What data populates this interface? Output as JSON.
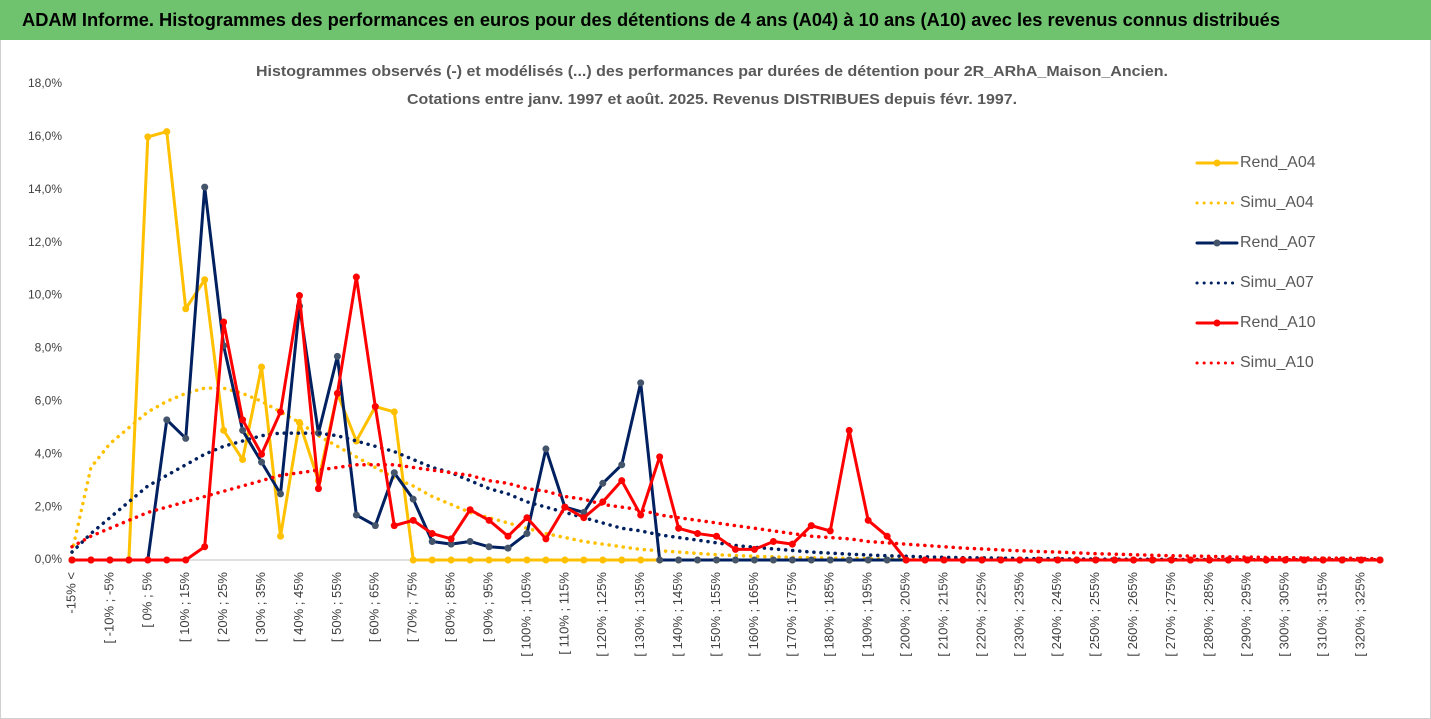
{
  "header": {
    "title": "ADAM Informe. Histogrammes des performances en euros pour des détentions de 4 ans (A04) à 10 ans (A10) avec les revenus connus distribués"
  },
  "chart_data": {
    "type": "line",
    "title": "Histogrammes observés (-) et modélisés (...) des performances par durées de détention pour 2R_ARhA_Maison_Ancien.",
    "subtitle": "Cotations entre janv. 1997 et août. 2025. Revenus DISTRIBUES depuis févr. 1997.",
    "categories": [
      "-15% <",
      null,
      "[ -10% ; -5%",
      null,
      "[ 0% ; 5%",
      null,
      "[ 10% ; 15%",
      null,
      "[ 20% ; 25%",
      null,
      "[ 30% ; 35%",
      null,
      "[ 40% ; 45%",
      null,
      "[ 50% ; 55%",
      null,
      "[ 60% ; 65%",
      null,
      "[ 70% ; 75%",
      null,
      "[ 80% ; 85%",
      null,
      "[ 90% ; 95%",
      null,
      "[ 100% ; 105%",
      null,
      "[ 110% ; 115%",
      null,
      "[ 120% ; 125%",
      null,
      "[ 130% ; 135%",
      null,
      "[ 140% ; 145%",
      null,
      "[ 150% ; 155%",
      null,
      "[ 160% ; 165%",
      null,
      "[ 170% ; 175%",
      null,
      "[ 180% ; 185%",
      null,
      "[ 190% ; 195%",
      null,
      "[ 200% ; 205%",
      null,
      "[ 210% ; 215%",
      null,
      "[ 220% ; 225%",
      null,
      "[ 230% ; 235%",
      null,
      "[ 240% ; 245%",
      null,
      "[ 250% ; 255%",
      null,
      "[ 260% ; 265%",
      null,
      "[ 270% ; 275%",
      null,
      "[ 280% ; 285%",
      null,
      "[ 290% ; 295%",
      null,
      "[ 300% ; 305%",
      null,
      "[ 310% ; 315%",
      null,
      "[ 320% ; 325%",
      null
    ],
    "series": [
      {
        "name": "Rend_A04",
        "color": "#ffc000",
        "style": "solid",
        "values": [
          0,
          0,
          0,
          0,
          16.0,
          16.2,
          9.5,
          10.6,
          4.9,
          3.8,
          7.3,
          0.9,
          5.2,
          3.0,
          6.3,
          4.5,
          5.8,
          5.6,
          0,
          0,
          0,
          0,
          0,
          0,
          0,
          0,
          0,
          0,
          0,
          0,
          0,
          0,
          0,
          0,
          0,
          0,
          0,
          0,
          0,
          0,
          0,
          0,
          0,
          0,
          0,
          0,
          0,
          0,
          0,
          0,
          0,
          0,
          0,
          0,
          0,
          0,
          0,
          0,
          0,
          0,
          0,
          0,
          0,
          0,
          0,
          0,
          0,
          0,
          0,
          0
        ]
      },
      {
        "name": "Simu_A04",
        "color": "#ffc000",
        "style": "dotted",
        "values": [
          0.3,
          3.5,
          4.4,
          5.0,
          5.6,
          6.0,
          6.3,
          6.5,
          6.5,
          6.3,
          6.0,
          5.6,
          5.2,
          4.7,
          4.3,
          3.9,
          3.5,
          3.1,
          2.8,
          2.4,
          2.1,
          1.8,
          1.6,
          1.4,
          1.2,
          1.0,
          0.85,
          0.7,
          0.6,
          0.5,
          0.4,
          0.35,
          0.3,
          0.25,
          0.2,
          0.17,
          0.14,
          0.12,
          0.1,
          0.08,
          0.07,
          0.06,
          0.05,
          0.04,
          0.03,
          0.03,
          0.02,
          0.02,
          0.01,
          0.01,
          0,
          0,
          0,
          0,
          0,
          0,
          0,
          0,
          0,
          0,
          0,
          0,
          0,
          0,
          0,
          0,
          0,
          0,
          0,
          0
        ]
      },
      {
        "name": "Rend_A07",
        "color": "#002060",
        "style": "solid",
        "values": [
          0,
          0,
          0,
          0,
          0,
          5.3,
          4.6,
          14.1,
          8.1,
          4.9,
          3.7,
          2.5,
          9.6,
          4.8,
          7.7,
          1.7,
          1.3,
          3.3,
          2.3,
          0.7,
          0.6,
          0.7,
          0.5,
          0.45,
          1.0,
          4.2,
          2.0,
          1.8,
          2.9,
          3.6,
          6.7,
          0,
          0,
          0,
          0,
          0,
          0,
          0,
          0,
          0,
          0,
          0,
          0,
          0,
          0,
          0,
          0,
          0,
          0,
          0,
          0,
          0,
          0,
          0,
          0,
          0,
          0,
          0,
          0,
          0,
          0,
          0,
          0,
          0,
          0,
          0,
          0,
          0,
          0,
          0
        ]
      },
      {
        "name": "Simu_A07",
        "color": "#002060",
        "style": "dotted",
        "values": [
          0.3,
          1.0,
          1.6,
          2.2,
          2.8,
          3.2,
          3.6,
          4.0,
          4.3,
          4.5,
          4.7,
          4.8,
          4.8,
          4.8,
          4.7,
          4.5,
          4.3,
          4.1,
          3.8,
          3.5,
          3.3,
          3.0,
          2.7,
          2.5,
          2.2,
          2.0,
          1.8,
          1.6,
          1.4,
          1.2,
          1.1,
          0.95,
          0.85,
          0.75,
          0.65,
          0.55,
          0.48,
          0.42,
          0.36,
          0.3,
          0.26,
          0.22,
          0.19,
          0.16,
          0.14,
          0.12,
          0.1,
          0.09,
          0.08,
          0.07,
          0.06,
          0.05,
          0.05,
          0.04,
          0.04,
          0.03,
          0.03,
          0.03,
          0.02,
          0.02,
          0.02,
          0.02,
          0.01,
          0.01,
          0.01,
          0.01,
          0.01,
          0.01,
          0.01,
          0.01
        ]
      },
      {
        "name": "Rend_A10",
        "color": "#ff0000",
        "style": "solid",
        "values": [
          0,
          0,
          0,
          0,
          0,
          0,
          0,
          0.5,
          9.0,
          5.3,
          4.0,
          5.6,
          10.0,
          2.7,
          6.3,
          10.7,
          5.8,
          1.3,
          1.5,
          1.0,
          0.8,
          1.9,
          1.5,
          0.9,
          1.6,
          0.8,
          2.0,
          1.6,
          2.2,
          3.0,
          1.7,
          3.9,
          1.2,
          1.0,
          0.9,
          0.4,
          0.4,
          0.7,
          0.6,
          1.3,
          1.1,
          4.9,
          1.5,
          0.9,
          0,
          0,
          0,
          0,
          0,
          0,
          0,
          0,
          0,
          0,
          0,
          0,
          0,
          0,
          0,
          0,
          0,
          0,
          0,
          0,
          0,
          0,
          0,
          0,
          0,
          0
        ]
      },
      {
        "name": "Simu_A10",
        "color": "#ff0000",
        "style": "dotted",
        "values": [
          0.5,
          0.9,
          1.2,
          1.5,
          1.8,
          2.0,
          2.2,
          2.4,
          2.6,
          2.8,
          3.0,
          3.2,
          3.3,
          3.4,
          3.5,
          3.6,
          3.6,
          3.6,
          3.5,
          3.4,
          3.3,
          3.2,
          3.0,
          2.9,
          2.7,
          2.6,
          2.4,
          2.3,
          2.1,
          2.0,
          1.9,
          1.7,
          1.6,
          1.5,
          1.4,
          1.3,
          1.2,
          1.1,
          1.0,
          0.9,
          0.85,
          0.8,
          0.7,
          0.65,
          0.6,
          0.55,
          0.5,
          0.45,
          0.42,
          0.38,
          0.35,
          0.32,
          0.3,
          0.27,
          0.24,
          0.22,
          0.2,
          0.18,
          0.16,
          0.15,
          0.14,
          0.12,
          0.11,
          0.1,
          0.09,
          0.08,
          0.07,
          0.07,
          0.06,
          0.05
        ]
      }
    ],
    "ylim": [
      0,
      18
    ],
    "yticks": [
      {
        "value": 0,
        "label": "0,0%"
      },
      {
        "value": 2,
        "label": "2,0%"
      },
      {
        "value": 4,
        "label": "4,0%"
      },
      {
        "value": 6,
        "label": "6,0%"
      },
      {
        "value": 8,
        "label": "8,0%"
      },
      {
        "value": 10,
        "label": "10,0%"
      },
      {
        "value": 12,
        "label": "12,0%"
      },
      {
        "value": 14,
        "label": "14,0%"
      },
      {
        "value": 16,
        "label": "16,0%"
      },
      {
        "value": 18,
        "label": "18,0%"
      }
    ],
    "grid": false,
    "legend": "right"
  }
}
